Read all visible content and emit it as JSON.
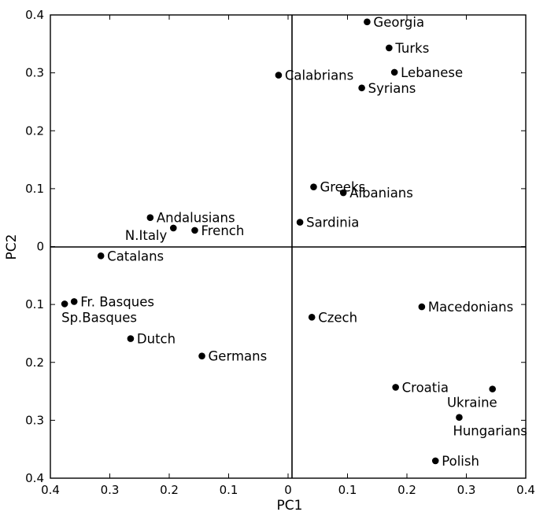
{
  "chart_data": {
    "type": "scatter",
    "xlabel": "PC1",
    "ylabel": "PC2",
    "xlim": [
      -0.4,
      0.4
    ],
    "ylim": [
      -0.4,
      0.4
    ],
    "xticks": [
      -0.4,
      -0.3,
      -0.2,
      -0.1,
      0,
      0.1,
      0.2,
      0.3,
      0.4
    ],
    "xtick_labels": [
      "0.4",
      "0.3",
      "0.2",
      "0.1",
      "0",
      "0.1",
      "0.2",
      "0.3",
      "0.4"
    ],
    "yticks": [
      0.4,
      0.3,
      0.2,
      0.1,
      0,
      -0.1,
      -0.2,
      -0.3,
      -0.4
    ],
    "ytick_labels": [
      "0.4",
      "0.3",
      "0.2",
      "0.1",
      "0",
      "0.1",
      "0.2",
      "0.3",
      "0.4"
    ],
    "grid": false,
    "zero_lines": true,
    "points": [
      {
        "label": "Georgia",
        "x": 0.133,
        "y": 0.388
      },
      {
        "label": "Turks",
        "x": 0.17,
        "y": 0.343
      },
      {
        "label": "Calabrians",
        "x": -0.016,
        "y": 0.296
      },
      {
        "label": "Lebanese",
        "x": 0.179,
        "y": 0.301
      },
      {
        "label": "Syrians",
        "x": 0.124,
        "y": 0.274
      },
      {
        "label": "Greeks",
        "x": 0.043,
        "y": 0.103
      },
      {
        "label": "Albanians",
        "x": 0.093,
        "y": 0.093
      },
      {
        "label": "Sardinia",
        "x": 0.02,
        "y": 0.042
      },
      {
        "label": "Andalusians",
        "x": -0.232,
        "y": 0.05
      },
      {
        "label": "N.Italy",
        "x": -0.193,
        "y": 0.032
      },
      {
        "label": "French",
        "x": -0.157,
        "y": 0.028
      },
      {
        "label": "Catalans",
        "x": -0.315,
        "y": -0.016
      },
      {
        "label": "Fr. Basques",
        "x": -0.36,
        "y": -0.095
      },
      {
        "label": "Sp.Basques",
        "x": -0.376,
        "y": -0.099
      },
      {
        "label": "Dutch",
        "x": -0.265,
        "y": -0.159
      },
      {
        "label": "Germans",
        "x": -0.145,
        "y": -0.189
      },
      {
        "label": "Czech",
        "x": 0.04,
        "y": -0.122
      },
      {
        "label": "Macedonians",
        "x": 0.225,
        "y": -0.104
      },
      {
        "label": "Croatia",
        "x": 0.181,
        "y": -0.243
      },
      {
        "label": "Ukraine",
        "x": 0.344,
        "y": -0.246
      },
      {
        "label": "Hungarians",
        "x": 0.288,
        "y": -0.295
      },
      {
        "label": "Polish",
        "x": 0.248,
        "y": -0.37
      }
    ]
  }
}
